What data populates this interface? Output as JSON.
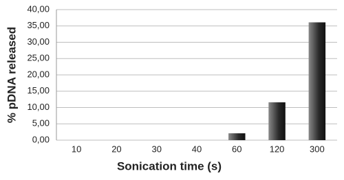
{
  "chart_data": {
    "type": "bar",
    "x_label": "Sonication time (s)",
    "y_label": "% pDNA released",
    "categories": [
      "10",
      "20",
      "30",
      "40",
      "60",
      "120",
      "300"
    ],
    "values": [
      0,
      0,
      0,
      0,
      2.1,
      11.6,
      36.1
    ],
    "color": "#2a2a2a",
    "ylim": [
      0,
      40
    ],
    "yticks": [
      {
        "value": 0,
        "label": "0,00"
      },
      {
        "value": 5,
        "label": "5,00"
      },
      {
        "value": 10,
        "label": "10,00"
      },
      {
        "value": 15,
        "label": "15,00"
      },
      {
        "value": 20,
        "label": "20,00"
      },
      {
        "value": 25,
        "label": "25,00"
      },
      {
        "value": 30,
        "label": "30,00"
      },
      {
        "value": 35,
        "label": "35,00"
      },
      {
        "value": 40,
        "label": "40,00"
      }
    ],
    "grid": true
  }
}
